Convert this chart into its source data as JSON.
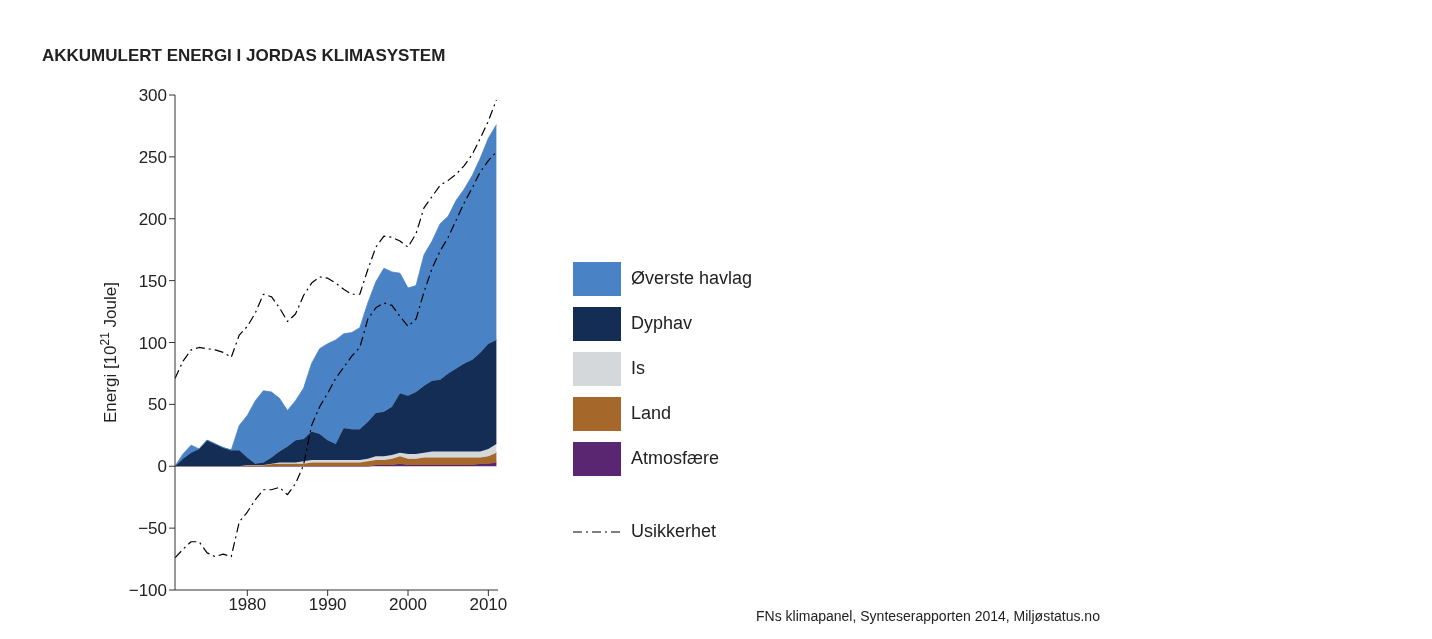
{
  "chart_data": {
    "type": "area",
    "title": "AKKUMULERT ENERGI I JORDAS KLIMASYSTEM",
    "ylabel": "Energi [10$^{21}$ Joule]",
    "stacked": true,
    "legend": "right",
    "line_style": "dashed",
    "annotations": [
      "FNs klimapanel, Synteserapporten 2014, Miljøstatus.no"
    ],
    "x": [
      1971,
      1972,
      1973,
      1974,
      1975,
      1976,
      1977,
      1978,
      1979,
      1980,
      1981,
      1982,
      1983,
      1984,
      1985,
      1986,
      1987,
      1988,
      1989,
      1990,
      1991,
      1992,
      1993,
      1994,
      1995,
      1996,
      1997,
      1998,
      1999,
      2000,
      2001,
      2002,
      2003,
      2004,
      2005,
      2006,
      2007,
      2008,
      2009,
      2010,
      2011
    ],
    "xlim": [
      1971,
      2011.2
    ],
    "xticks": [
      1980,
      1990,
      2000,
      2010
    ],
    "ylim": [
      -100,
      300
    ],
    "yticks": [
      -100,
      -50,
      0,
      50,
      100,
      150,
      200,
      250,
      300
    ],
    "series": [
      {
        "name": "Atmosfære",
        "color": "#5a2671",
        "values": [
          0,
          0,
          0,
          0,
          0,
          0,
          0,
          0,
          0,
          0,
          0,
          0,
          0,
          0,
          0,
          0,
          0,
          0,
          0,
          0,
          0,
          0,
          0,
          0,
          0,
          1,
          1,
          1,
          2,
          1,
          1,
          1,
          1,
          1,
          1,
          1,
          1,
          1,
          2,
          2,
          3
        ]
      },
      {
        "name": "Land",
        "color": "#a5672a",
        "values": [
          0,
          0,
          0,
          0,
          0,
          0,
          0,
          0,
          0,
          1,
          1,
          1,
          2,
          2,
          2,
          2,
          2,
          3,
          3,
          3,
          3,
          3,
          3,
          3,
          4,
          4,
          4,
          5,
          6,
          5,
          5,
          6,
          6,
          6,
          6,
          6,
          6,
          6,
          5,
          6,
          8
        ]
      },
      {
        "name": "Is",
        "color": "#d5d8db",
        "values": [
          0,
          0,
          0,
          0,
          0,
          0,
          0,
          0,
          0,
          0,
          0,
          0,
          0,
          1,
          1,
          1,
          2,
          2,
          2,
          2,
          2,
          2,
          2,
          2,
          2,
          3,
          3,
          3,
          3,
          4,
          4,
          4,
          5,
          5,
          5,
          5,
          5,
          5,
          5,
          6,
          7
        ]
      },
      {
        "name": "Dyphav",
        "color": "#142d55",
        "values": [
          0,
          6,
          11,
          14,
          21,
          18,
          15,
          13,
          13,
          6,
          1,
          2,
          5,
          9,
          13,
          18,
          18,
          23,
          21,
          16,
          13,
          26,
          25,
          25,
          30,
          35,
          36,
          39,
          48,
          47,
          50,
          54,
          57,
          58,
          63,
          67,
          71,
          74,
          80,
          85,
          84
        ]
      },
      {
        "name": "Øverste havlag",
        "color": "#4a82c6",
        "values": [
          0,
          4,
          6,
          0,
          0,
          0,
          0,
          0,
          20,
          34,
          51,
          58,
          53,
          43,
          29,
          32,
          41,
          55,
          69,
          78,
          84,
          76,
          78,
          82,
          96,
          106,
          116,
          109,
          97,
          87,
          86,
          106,
          113,
          126,
          127,
          136,
          141,
          149,
          157,
          166,
          174
        ]
      },
      {
        "name": "Usikkerhet",
        "type": "line",
        "color": "#000000",
        "values": [
          71,
          85,
          94,
          96,
          95,
          94,
          92,
          88,
          106,
          113,
          124,
          139,
          137,
          128,
          117,
          123,
          138,
          148,
          153,
          152,
          148,
          143,
          139,
          139,
          159,
          177,
          186,
          185,
          182,
          177,
          188,
          209,
          218,
          227,
          231,
          236,
          243,
          252,
          265,
          279,
          296
        ]
      },
      {
        "type": "line",
        "color": "#000000",
        "values": [
          -74,
          -67,
          -61,
          -61,
          -70,
          -73,
          -71,
          -73,
          -45,
          -37,
          -27,
          -19,
          -19,
          -17,
          -23,
          -14,
          1,
          33,
          48,
          59,
          71,
          80,
          89,
          96,
          119,
          128,
          132,
          130,
          121,
          113,
          119,
          141,
          160,
          174,
          185,
          199,
          213,
          225,
          238,
          247,
          254
        ]
      }
    ]
  }
}
